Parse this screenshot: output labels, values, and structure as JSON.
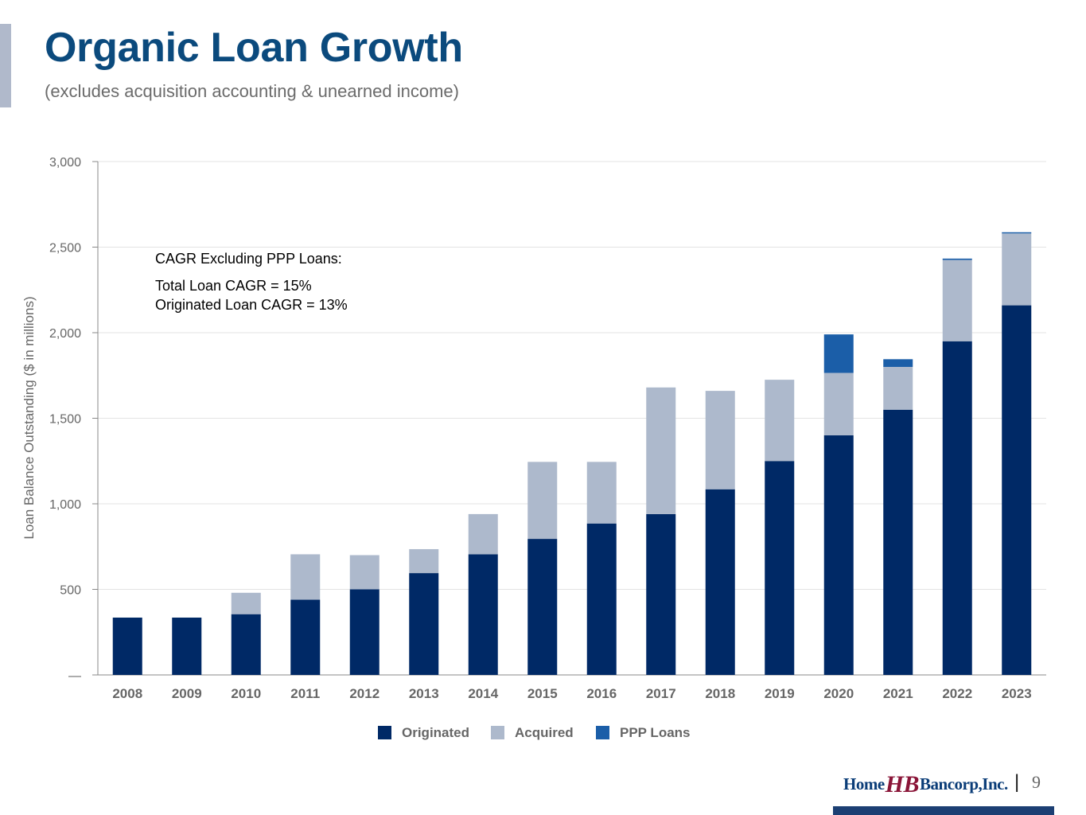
{
  "header": {
    "title": "Organic Loan Growth",
    "subtitle": "(excludes acquisition accounting & unearned income)"
  },
  "annotation": {
    "heading": "CAGR Excluding PPP Loans:",
    "line1": "Total Loan CAGR = 15%",
    "line2": "Originated Loan CAGR = 13%"
  },
  "footer": {
    "logo_part1": "Home",
    "logo_mark": "HB",
    "logo_part2": "Bancorp,Inc.",
    "separator": "|",
    "page_number": "9"
  },
  "colors": {
    "title": "#0b4a7d",
    "originated": "#002966",
    "acquired": "#adb9cc",
    "ppp": "#1b5ea8",
    "grid": "#e3e3e3",
    "axis_text": "#666666"
  },
  "chart_data": {
    "type": "bar",
    "stacked": true,
    "categories": [
      "2008",
      "2009",
      "2010",
      "2011",
      "2012",
      "2013",
      "2014",
      "2015",
      "2016",
      "2017",
      "2018",
      "2019",
      "2020",
      "2021",
      "2022",
      "2023"
    ],
    "series": [
      {
        "name": "Originated",
        "values": [
          335,
          335,
          355,
          440,
          500,
          595,
          705,
          795,
          885,
          940,
          1085,
          1250,
          1400,
          1550,
          1950,
          2160
        ]
      },
      {
        "name": "Acquired",
        "values": [
          0,
          0,
          125,
          265,
          200,
          140,
          235,
          450,
          360,
          740,
          575,
          475,
          365,
          250,
          475,
          420
        ]
      },
      {
        "name": "PPP Loans",
        "values": [
          0,
          0,
          0,
          0,
          0,
          0,
          0,
          0,
          0,
          0,
          0,
          0,
          225,
          45,
          8,
          7
        ]
      }
    ],
    "ylabel": "Loan Balance Outstanding ($ in millions)",
    "xlabel": "",
    "ylim": [
      0,
      3000
    ],
    "yticks": [
      0,
      500,
      1000,
      1500,
      2000,
      2500,
      3000
    ],
    "ytick_labels": [
      "—",
      "500",
      "1,000",
      "1,500",
      "2,000",
      "2,500",
      "3,000"
    ],
    "grid": true,
    "legend": "bottom-center"
  }
}
